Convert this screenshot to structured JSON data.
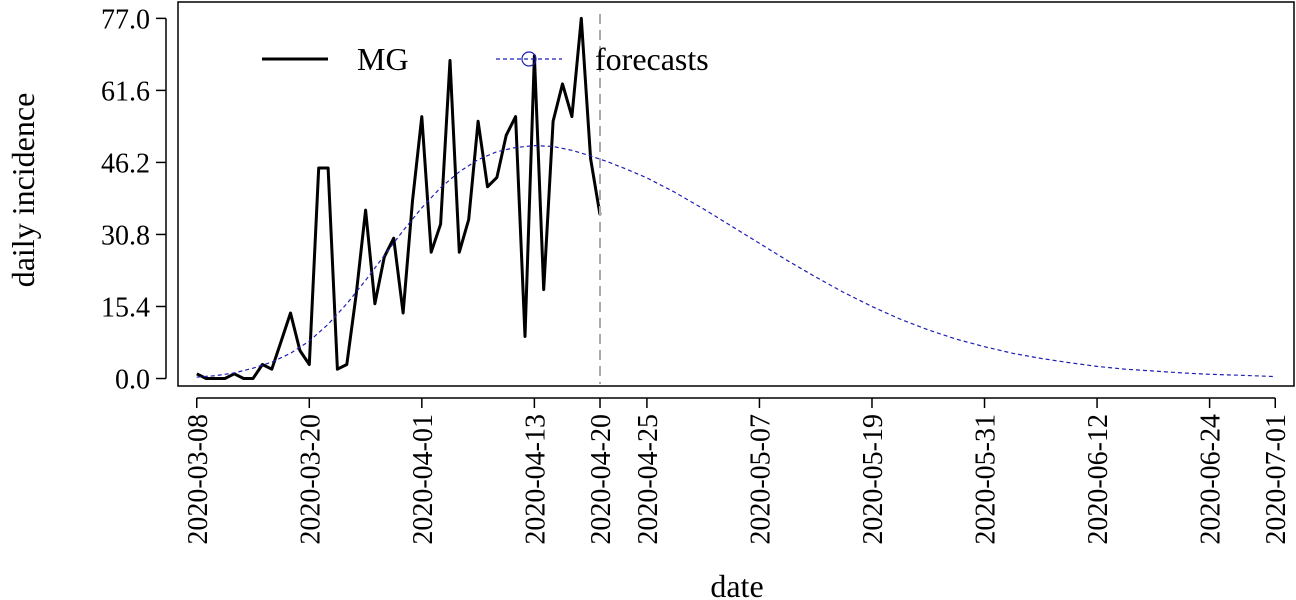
{
  "chart_data": {
    "type": "line",
    "xlabel": "date",
    "ylabel": "daily incidence",
    "x_range": [
      "2020-03-06",
      "2020-07-03"
    ],
    "ylim": [
      -1.6,
      80.5
    ],
    "y_ticks": [
      "0.0",
      "15.4",
      "30.8",
      "46.2",
      "61.6",
      "77.0"
    ],
    "x_ticks": [
      "2020-03-08",
      "2020-03-20",
      "2020-04-01",
      "2020-04-13",
      "2020-04-20",
      "2020-04-25",
      "2020-05-07",
      "2020-05-19",
      "2020-05-31",
      "2020-06-12",
      "2020-06-24",
      "2020-07-01"
    ],
    "cutoff_date": "2020-04-20",
    "grid": false,
    "legend": {
      "position": "top-left",
      "items": [
        "MG",
        "forecasts"
      ]
    },
    "colors": {
      "observed": "#000000",
      "forecast": "#1f1fb4",
      "cutoff": "#aaaaaa"
    },
    "series": [
      {
        "name": "MG",
        "style": "solid",
        "x": [
          "2020-03-08",
          "2020-03-09",
          "2020-03-10",
          "2020-03-11",
          "2020-03-12",
          "2020-03-13",
          "2020-03-14",
          "2020-03-15",
          "2020-03-16",
          "2020-03-17",
          "2020-03-18",
          "2020-03-19",
          "2020-03-20",
          "2020-03-21",
          "2020-03-22",
          "2020-03-23",
          "2020-03-24",
          "2020-03-25",
          "2020-03-26",
          "2020-03-27",
          "2020-03-28",
          "2020-03-29",
          "2020-03-30",
          "2020-03-31",
          "2020-04-01",
          "2020-04-02",
          "2020-04-03",
          "2020-04-04",
          "2020-04-05",
          "2020-04-06",
          "2020-04-07",
          "2020-04-08",
          "2020-04-09",
          "2020-04-10",
          "2020-04-11",
          "2020-04-12",
          "2020-04-13",
          "2020-04-14",
          "2020-04-15",
          "2020-04-16",
          "2020-04-17",
          "2020-04-18",
          "2020-04-19",
          "2020-04-20"
        ],
        "values": [
          1,
          0,
          0,
          0,
          1,
          0,
          0,
          3,
          2,
          8,
          14,
          6,
          3,
          45,
          45,
          2,
          3,
          18,
          36,
          16,
          26,
          30,
          14,
          38,
          56,
          27,
          33,
          68,
          27,
          34,
          55,
          41,
          43,
          52,
          56,
          9,
          69,
          19,
          55,
          63,
          56,
          77,
          47,
          35
        ]
      },
      {
        "name": "forecasts",
        "style": "dashed",
        "x": [
          "2020-03-08",
          "2020-03-10",
          "2020-03-12",
          "2020-03-14",
          "2020-03-16",
          "2020-03-18",
          "2020-03-20",
          "2020-03-22",
          "2020-03-24",
          "2020-03-26",
          "2020-03-28",
          "2020-03-30",
          "2020-04-01",
          "2020-04-03",
          "2020-04-05",
          "2020-04-07",
          "2020-04-09",
          "2020-04-11",
          "2020-04-13",
          "2020-04-15",
          "2020-04-17",
          "2020-04-19",
          "2020-04-21",
          "2020-04-23",
          "2020-04-25",
          "2020-04-28",
          "2020-05-01",
          "2020-05-04",
          "2020-05-07",
          "2020-05-10",
          "2020-05-13",
          "2020-05-16",
          "2020-05-19",
          "2020-05-22",
          "2020-05-25",
          "2020-05-28",
          "2020-05-31",
          "2020-06-03",
          "2020-06-06",
          "2020-06-09",
          "2020-06-12",
          "2020-06-15",
          "2020-06-18",
          "2020-06-21",
          "2020-06-24",
          "2020-06-27",
          "2020-06-30",
          "2020-07-01"
        ],
        "values": [
          0.3,
          0.6,
          1.2,
          2.2,
          3.5,
          5.4,
          8.0,
          11.6,
          16.0,
          21.0,
          26.3,
          31.6,
          36.5,
          40.8,
          44.2,
          46.8,
          48.5,
          49.4,
          49.8,
          49.6,
          48.8,
          47.6,
          46.2,
          44.6,
          42.9,
          39.8,
          36.3,
          32.6,
          28.9,
          25.2,
          21.7,
          18.4,
          15.4,
          12.7,
          10.4,
          8.4,
          6.8,
          5.4,
          4.3,
          3.4,
          2.6,
          2.0,
          1.6,
          1.2,
          0.9,
          0.7,
          0.5,
          0.4
        ]
      }
    ]
  }
}
